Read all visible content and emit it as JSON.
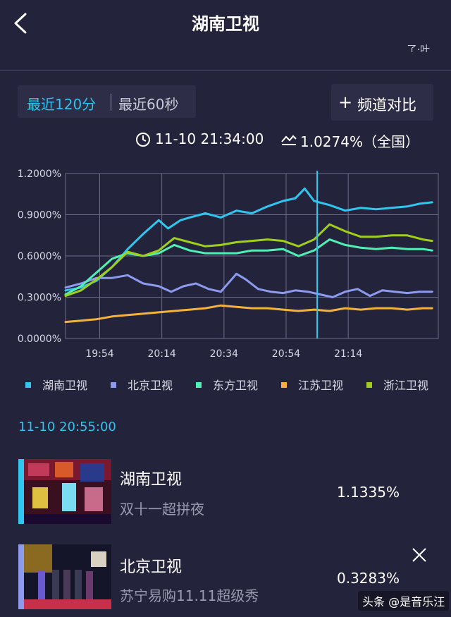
{
  "header": {
    "title": "湖南卫视",
    "cut_text": "了·叶"
  },
  "tabs": [
    {
      "label": "最近120分",
      "active": true
    },
    {
      "label": "最近60秒",
      "active": false
    }
  ],
  "compare_button": {
    "icon": "plus-icon",
    "label": "频道对比"
  },
  "info": {
    "time": "11-10 21:34:00",
    "rating": "1.0274%（全国）"
  },
  "chart_data": {
    "type": "line",
    "y_ticks": [
      "1.2000%",
      "0.9000%",
      "0.6000%",
      "0.3000%",
      "0.0000%"
    ],
    "ylim": [
      0,
      1.2
    ],
    "x_ticks": [
      "19:54",
      "20:14",
      "20:34",
      "20:54",
      "21:14"
    ],
    "x_tick_positions": [
      11,
      31,
      51,
      71,
      91
    ],
    "xlim": [
      0,
      120
    ],
    "cursor_x": 81,
    "grid": true,
    "legend_position": "bottom",
    "series": [
      {
        "name": "湖南卫视",
        "color": "#2fc7ef",
        "values": [
          [
            0,
            0.35
          ],
          [
            5,
            0.37
          ],
          [
            10,
            0.42
          ],
          [
            15,
            0.52
          ],
          [
            20,
            0.65
          ],
          [
            25,
            0.76
          ],
          [
            30,
            0.86
          ],
          [
            33,
            0.8
          ],
          [
            37,
            0.86
          ],
          [
            40,
            0.88
          ],
          [
            45,
            0.91
          ],
          [
            50,
            0.88
          ],
          [
            55,
            0.93
          ],
          [
            60,
            0.91
          ],
          [
            65,
            0.96
          ],
          [
            70,
            1.0
          ],
          [
            74,
            1.02
          ],
          [
            77,
            1.09
          ],
          [
            80,
            1.0
          ],
          [
            85,
            0.97
          ],
          [
            90,
            0.93
          ],
          [
            95,
            0.95
          ],
          [
            100,
            0.94
          ],
          [
            105,
            0.95
          ],
          [
            110,
            0.96
          ],
          [
            114,
            0.98
          ],
          [
            118,
            0.99
          ]
        ]
      },
      {
        "name": "北京卫视",
        "color": "#8c9bf0",
        "values": [
          [
            0,
            0.37
          ],
          [
            5,
            0.4
          ],
          [
            10,
            0.44
          ],
          [
            15,
            0.44
          ],
          [
            20,
            0.46
          ],
          [
            25,
            0.4
          ],
          [
            30,
            0.38
          ],
          [
            34,
            0.34
          ],
          [
            38,
            0.38
          ],
          [
            42,
            0.4
          ],
          [
            46,
            0.36
          ],
          [
            50,
            0.34
          ],
          [
            55,
            0.47
          ],
          [
            58,
            0.43
          ],
          [
            62,
            0.36
          ],
          [
            66,
            0.34
          ],
          [
            70,
            0.33
          ],
          [
            74,
            0.35
          ],
          [
            78,
            0.34
          ],
          [
            82,
            0.32
          ],
          [
            86,
            0.3
          ],
          [
            90,
            0.34
          ],
          [
            94,
            0.36
          ],
          [
            98,
            0.31
          ],
          [
            102,
            0.35
          ],
          [
            106,
            0.34
          ],
          [
            110,
            0.33
          ],
          [
            114,
            0.34
          ],
          [
            118,
            0.34
          ]
        ]
      },
      {
        "name": "东方卫视",
        "color": "#4ff0b4",
        "values": [
          [
            0,
            0.32
          ],
          [
            5,
            0.38
          ],
          [
            10,
            0.48
          ],
          [
            15,
            0.58
          ],
          [
            20,
            0.62
          ],
          [
            25,
            0.6
          ],
          [
            30,
            0.62
          ],
          [
            35,
            0.68
          ],
          [
            40,
            0.64
          ],
          [
            45,
            0.62
          ],
          [
            50,
            0.62
          ],
          [
            55,
            0.62
          ],
          [
            60,
            0.64
          ],
          [
            65,
            0.64
          ],
          [
            70,
            0.65
          ],
          [
            75,
            0.6
          ],
          [
            80,
            0.64
          ],
          [
            85,
            0.72
          ],
          [
            90,
            0.68
          ],
          [
            95,
            0.66
          ],
          [
            100,
            0.65
          ],
          [
            105,
            0.66
          ],
          [
            110,
            0.65
          ],
          [
            115,
            0.65
          ],
          [
            118,
            0.64
          ]
        ]
      },
      {
        "name": "江苏卫视",
        "color": "#f5b23a",
        "values": [
          [
            0,
            0.12
          ],
          [
            5,
            0.13
          ],
          [
            10,
            0.14
          ],
          [
            15,
            0.16
          ],
          [
            20,
            0.17
          ],
          [
            25,
            0.18
          ],
          [
            30,
            0.19
          ],
          [
            35,
            0.2
          ],
          [
            40,
            0.21
          ],
          [
            45,
            0.22
          ],
          [
            50,
            0.24
          ],
          [
            55,
            0.23
          ],
          [
            60,
            0.22
          ],
          [
            65,
            0.22
          ],
          [
            70,
            0.21
          ],
          [
            75,
            0.2
          ],
          [
            80,
            0.21
          ],
          [
            85,
            0.2
          ],
          [
            90,
            0.22
          ],
          [
            95,
            0.21
          ],
          [
            100,
            0.22
          ],
          [
            105,
            0.22
          ],
          [
            110,
            0.21
          ],
          [
            115,
            0.22
          ],
          [
            118,
            0.22
          ]
        ]
      },
      {
        "name": "浙江卫视",
        "color": "#9fcf1a",
        "values": [
          [
            0,
            0.31
          ],
          [
            5,
            0.35
          ],
          [
            10,
            0.43
          ],
          [
            15,
            0.52
          ],
          [
            20,
            0.63
          ],
          [
            25,
            0.6
          ],
          [
            30,
            0.64
          ],
          [
            35,
            0.73
          ],
          [
            40,
            0.7
          ],
          [
            45,
            0.67
          ],
          [
            50,
            0.68
          ],
          [
            55,
            0.7
          ],
          [
            60,
            0.71
          ],
          [
            65,
            0.72
          ],
          [
            70,
            0.71
          ],
          [
            75,
            0.67
          ],
          [
            80,
            0.72
          ],
          [
            85,
            0.83
          ],
          [
            90,
            0.78
          ],
          [
            95,
            0.74
          ],
          [
            100,
            0.74
          ],
          [
            105,
            0.75
          ],
          [
            110,
            0.75
          ],
          [
            115,
            0.72
          ],
          [
            118,
            0.71
          ]
        ]
      }
    ]
  },
  "selected_time": "11-10 20:55:00",
  "rows": [
    {
      "channel": "湖南卫视",
      "program": "双十一超拼夜",
      "value": "1.1335%",
      "color": "#2fc7ef"
    },
    {
      "channel": "北京卫视",
      "program": "苏宁易购11.11超级秀",
      "value": "0.3283%",
      "color": "#8c9bf0"
    }
  ],
  "watermark": "头条 @是音乐汪"
}
